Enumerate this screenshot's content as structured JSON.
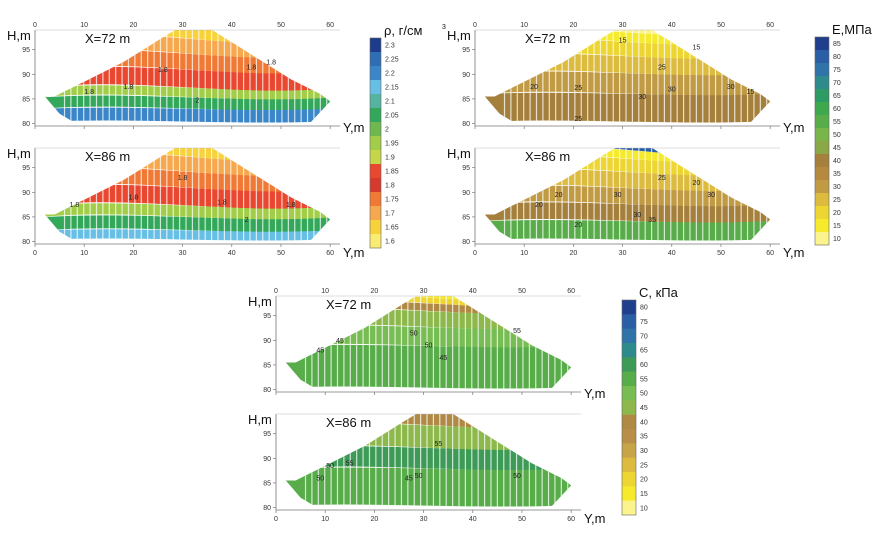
{
  "chart_data": [
    {
      "type": "heatmap",
      "panel": "density-x72",
      "title": "X=72 m",
      "xlabel": "Y,m",
      "ylabel": "H,m",
      "xlim": [
        0,
        62
      ],
      "ylim": [
        79.5,
        99
      ],
      "xticks": [
        0,
        10,
        20,
        30,
        40,
        50,
        60
      ],
      "yticks": [
        80,
        85,
        90,
        95
      ],
      "contour_labels": [
        "1.8",
        "1.8",
        "1.8",
        "1.8",
        "1.8",
        "2"
      ],
      "layers": [
        {
          "value": 2.2,
          "color": "#3a86c8"
        },
        {
          "value": 2.05,
          "color": "#33a85a"
        },
        {
          "value": 1.95,
          "color": "#a2cd48"
        },
        {
          "value": 1.85,
          "color": "#e9472f"
        },
        {
          "value": 1.75,
          "color": "#f07a35"
        },
        {
          "value": 1.7,
          "color": "#f5a84e"
        },
        {
          "value": 1.65,
          "color": "#f7d23b"
        }
      ]
    },
    {
      "type": "heatmap",
      "panel": "density-x86",
      "title": "X=86 m",
      "xlabel": "Y,m",
      "ylabel": "H,m",
      "xlim": [
        0,
        62
      ],
      "ylim": [
        79.5,
        99
      ],
      "xticks": [
        0,
        10,
        20,
        30,
        40,
        50,
        60
      ],
      "yticks": [
        80,
        85,
        90,
        95
      ],
      "contour_labels": [
        "1.8",
        "1.8",
        "1.8",
        "1.8",
        "1.8",
        "2"
      ],
      "layers": [
        {
          "value": 2.15,
          "color": "#67bfe6"
        },
        {
          "value": 2.05,
          "color": "#33a85a"
        },
        {
          "value": 1.95,
          "color": "#a2cd48"
        },
        {
          "value": 1.85,
          "color": "#e9472f"
        },
        {
          "value": 1.75,
          "color": "#f07a35"
        },
        {
          "value": 1.7,
          "color": "#f5a84e"
        },
        {
          "value": 1.65,
          "color": "#f7d23b"
        }
      ]
    },
    {
      "type": "heatmap",
      "panel": "modulus-x72",
      "title": "X=72 m",
      "xlabel": "Y,m",
      "ylabel": "H,m",
      "xlim": [
        0,
        62
      ],
      "ylim": [
        79.5,
        99
      ],
      "xticks": [
        0,
        10,
        20,
        30,
        40,
        50,
        60
      ],
      "yticks": [
        80,
        85,
        90,
        95
      ],
      "contour_labels": [
        "15",
        "20",
        "15",
        "25",
        "25",
        "30",
        "30",
        "30",
        "25",
        "15"
      ],
      "layers": [
        {
          "value": 35,
          "color": "#a5803c"
        },
        {
          "value": 30,
          "color": "#c19a44"
        },
        {
          "value": 25,
          "color": "#dcbb3f"
        },
        {
          "value": 20,
          "color": "#edd532"
        },
        {
          "value": 15,
          "color": "#f6ea2c"
        },
        {
          "value": 10,
          "color": "#fbf38e"
        }
      ]
    },
    {
      "type": "heatmap",
      "panel": "modulus-x86",
      "title": "X=86 m",
      "xlabel": "Y,m",
      "ylabel": "H,m",
      "xlim": [
        0,
        62
      ],
      "ylim": [
        79.5,
        99
      ],
      "xticks": [
        0,
        10,
        20,
        30,
        40,
        50,
        60
      ],
      "yticks": [
        80,
        85,
        90,
        95
      ],
      "contour_labels": [
        "20",
        "20",
        "30",
        "30",
        "25",
        "20",
        "30",
        "35",
        "20"
      ],
      "layers": [
        {
          "value": 45,
          "color": "#58ad4a"
        },
        {
          "value": 35,
          "color": "#a5803c"
        },
        {
          "value": 30,
          "color": "#c19a44"
        },
        {
          "value": 25,
          "color": "#dcbb3f"
        },
        {
          "value": 20,
          "color": "#edd532"
        },
        {
          "value": 15,
          "color": "#f6ea2c"
        },
        {
          "value": 75,
          "color": "#2a5fa6"
        }
      ]
    },
    {
      "type": "heatmap",
      "panel": "cohesion-x72",
      "title": "X=72 m",
      "xlabel": "Y,m",
      "ylabel": "H,m",
      "xlim": [
        0,
        62
      ],
      "ylim": [
        79.5,
        99
      ],
      "xticks": [
        0,
        10,
        20,
        30,
        40,
        50,
        60
      ],
      "yticks": [
        80,
        85,
        90,
        95
      ],
      "contour_labels": [
        "45",
        "45",
        "50",
        "50",
        "45",
        "55"
      ],
      "layers": [
        {
          "value": 50,
          "color": "#58ad4a"
        },
        {
          "value": 55,
          "color": "#78bd54"
        },
        {
          "value": 45,
          "color": "#8db84c"
        },
        {
          "value": 40,
          "color": "#b08a45"
        },
        {
          "value": 20,
          "color": "#edd532"
        },
        {
          "value": 15,
          "color": "#f6ea2c"
        }
      ]
    },
    {
      "type": "heatmap",
      "panel": "cohesion-x86",
      "title": "X=86 m",
      "xlabel": "Y,m",
      "ylabel": "H,m",
      "xlim": [
        0,
        62
      ],
      "ylim": [
        79.5,
        99
      ],
      "xticks": [
        0,
        10,
        20,
        30,
        40,
        50,
        60
      ],
      "yticks": [
        80,
        85,
        90,
        95
      ],
      "contour_labels": [
        "50",
        "50",
        "55",
        "45",
        "50",
        "55",
        "50"
      ],
      "layers": [
        {
          "value": 50,
          "color": "#58ad4a"
        },
        {
          "value": 55,
          "color": "#3e9a57"
        },
        {
          "value": 45,
          "color": "#8db84c"
        },
        {
          "value": 40,
          "color": "#b08a45"
        }
      ]
    }
  ],
  "colorbars": [
    {
      "name": "density",
      "label": "ρ, г/см",
      "label_sup": "3",
      "ticks": [
        "2.3",
        "2.25",
        "2.2",
        "2.15",
        "2.1",
        "2.05",
        "2",
        "1.95",
        "1.9",
        "1.85",
        "1.8",
        "1.75",
        "1.7",
        "1.65",
        "1.6"
      ],
      "colors": [
        "#1d3d8c",
        "#2f6db5",
        "#3a86c8",
        "#67bfe6",
        "#56b3a0",
        "#33a85a",
        "#6fb84f",
        "#a2cd48",
        "#c6d64a",
        "#e9472f",
        "#d63a2f",
        "#f07a35",
        "#f5a84e",
        "#f7d23b",
        "#faeb73"
      ]
    },
    {
      "name": "modulus",
      "label": "E,МПа",
      "ticks": [
        "85",
        "80",
        "75",
        "70",
        "65",
        "60",
        "55",
        "50",
        "45",
        "40",
        "35",
        "30",
        "25",
        "20",
        "15",
        "10"
      ],
      "colors": [
        "#1f3f8c",
        "#2a5fa6",
        "#2f73a8",
        "#2f8a8c",
        "#2e9a64",
        "#3fa84f",
        "#58ad4a",
        "#79b54a",
        "#8aa848",
        "#a5803c",
        "#b58a40",
        "#c19a44",
        "#dcbb3f",
        "#edd532",
        "#f6ea2c",
        "#fbf38e"
      ]
    },
    {
      "name": "cohesion",
      "label": "С, кПа",
      "ticks": [
        "80",
        "75",
        "70",
        "65",
        "60",
        "55",
        "50",
        "45",
        "40",
        "35",
        "30",
        "25",
        "20",
        "15",
        "10"
      ],
      "colors": [
        "#1f3f8c",
        "#2a5fa6",
        "#2f73a8",
        "#2f8a8c",
        "#3e9a57",
        "#58ad4a",
        "#78bd54",
        "#8db84c",
        "#b08a45",
        "#b88e48",
        "#c8a448",
        "#dcbb3f",
        "#edd532",
        "#f6ea2c",
        "#fbf38e"
      ]
    }
  ]
}
